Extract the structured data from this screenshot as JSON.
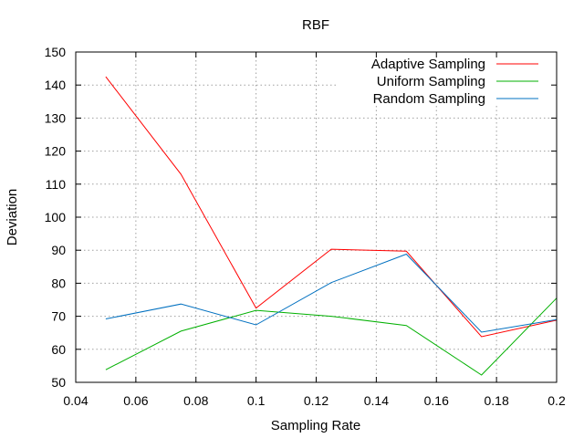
{
  "chart_data": {
    "type": "line",
    "title": "RBF",
    "xlabel": "Sampling Rate",
    "ylabel": "Deviation",
    "xlim": [
      0.04,
      0.2
    ],
    "ylim": [
      50,
      150
    ],
    "x_ticks": [
      0.04,
      0.06,
      0.08,
      0.1,
      0.12,
      0.14,
      0.16,
      0.18,
      0.2
    ],
    "x_tick_labels": [
      "0.04",
      "0.06",
      "0.08",
      "0.1",
      "0.12",
      "0.14",
      "0.16",
      "0.18",
      "0.2"
    ],
    "y_ticks": [
      50,
      60,
      70,
      80,
      90,
      100,
      110,
      120,
      130,
      140,
      150
    ],
    "y_tick_labels": [
      "50",
      "60",
      "70",
      "80",
      "90",
      "100",
      "110",
      "120",
      "130",
      "140",
      "150"
    ],
    "grid": true,
    "legend_position": "top-right",
    "x": [
      0.05,
      0.075,
      0.1,
      0.125,
      0.15,
      0.175,
      0.2
    ],
    "series": [
      {
        "name": "Adaptive Sampling",
        "color": "#ff0000",
        "values": [
          142.5,
          113,
          72.5,
          90.3,
          89.7,
          63.8,
          68.8
        ]
      },
      {
        "name": "Uniform Sampling",
        "color": "#00b000",
        "values": [
          53.8,
          65.5,
          71.8,
          70.0,
          67.2,
          52.2,
          75.5
        ]
      },
      {
        "name": "Random Sampling",
        "color": "#0070c0",
        "values": [
          69.2,
          73.7,
          67.4,
          80.2,
          88.8,
          65.2,
          69.0
        ]
      }
    ]
  }
}
